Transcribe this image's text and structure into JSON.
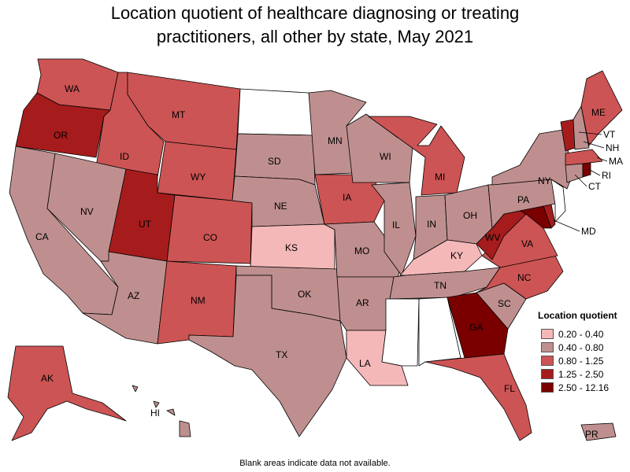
{
  "title_line1": "Location quotient of healthcare diagnosing or treating",
  "title_line2": "practitioners, all other by state, May 2021",
  "legend": {
    "title": "Location quotient",
    "items": [
      {
        "label": "0.20 - 0.40",
        "color": "#f5b8b8"
      },
      {
        "label": "0.40 - 0.80",
        "color": "#bf8f8f"
      },
      {
        "label": "0.80 - 1.25",
        "color": "#cd5454"
      },
      {
        "label": "1.25 - 2.50",
        "color": "#a61c1c"
      },
      {
        "label": "2.50 - 12.16",
        "color": "#7a0000"
      }
    ]
  },
  "no_data_color": "#ffffff",
  "footnote": "Blank areas indicate data not available.",
  "states": {
    "WA": {
      "label": "WA",
      "class": 2
    },
    "OR": {
      "label": "OR",
      "class": 3
    },
    "CA": {
      "label": "CA",
      "class": 1
    },
    "ID": {
      "label": "ID",
      "class": 2
    },
    "NV": {
      "label": "NV",
      "class": 1
    },
    "MT": {
      "label": "MT",
      "class": 2
    },
    "WY": {
      "label": "WY",
      "class": 2
    },
    "UT": {
      "label": "UT",
      "class": 3
    },
    "AZ": {
      "label": "AZ",
      "class": 1
    },
    "CO": {
      "label": "CO",
      "class": 2
    },
    "NM": {
      "label": "NM",
      "class": 2
    },
    "ND": {
      "label": "",
      "class": null
    },
    "SD": {
      "label": "SD",
      "class": 1
    },
    "NE": {
      "label": "NE",
      "class": 1
    },
    "KS": {
      "label": "KS",
      "class": 0
    },
    "OK": {
      "label": "OK",
      "class": 1
    },
    "TX": {
      "label": "TX",
      "class": 1
    },
    "MN": {
      "label": "MN",
      "class": 1
    },
    "IA": {
      "label": "IA",
      "class": 2
    },
    "MO": {
      "label": "MO",
      "class": 1
    },
    "AR": {
      "label": "AR",
      "class": 1
    },
    "LA": {
      "label": "LA",
      "class": 0
    },
    "WI": {
      "label": "WI",
      "class": 1
    },
    "IL": {
      "label": "IL",
      "class": 1
    },
    "MI": {
      "label": "MI",
      "class": 2
    },
    "IN": {
      "label": "IN",
      "class": 1
    },
    "OH": {
      "label": "OH",
      "class": 1
    },
    "KY": {
      "label": "KY",
      "class": 0
    },
    "TN": {
      "label": "TN",
      "class": 1
    },
    "MS": {
      "label": "",
      "class": null
    },
    "AL": {
      "label": "",
      "class": null
    },
    "GA": {
      "label": "GA",
      "class": 4
    },
    "FL": {
      "label": "FL",
      "class": 2
    },
    "SC": {
      "label": "SC",
      "class": 1
    },
    "NC": {
      "label": "NC",
      "class": 2
    },
    "VA": {
      "label": "VA",
      "class": 2
    },
    "WV": {
      "label": "WV",
      "class": 3
    },
    "MD": {
      "label": "MD",
      "class": 4
    },
    "DE": {
      "label": "",
      "class": 3
    },
    "NJ": {
      "label": "",
      "class": null
    },
    "PA": {
      "label": "PA",
      "class": 1
    },
    "NY": {
      "label": "NY",
      "class": 1
    },
    "CT": {
      "label": "CT",
      "class": 1
    },
    "RI": {
      "label": "RI",
      "class": 4
    },
    "MA": {
      "label": "MA",
      "class": 2
    },
    "VT": {
      "label": "VT",
      "class": 3
    },
    "NH": {
      "label": "NH",
      "class": 1
    },
    "ME": {
      "label": "ME",
      "class": 2
    },
    "AK": {
      "label": "AK",
      "class": 2
    },
    "HI": {
      "label": "HI",
      "class": 1
    },
    "PR": {
      "label": "PR",
      "class": 1
    }
  }
}
